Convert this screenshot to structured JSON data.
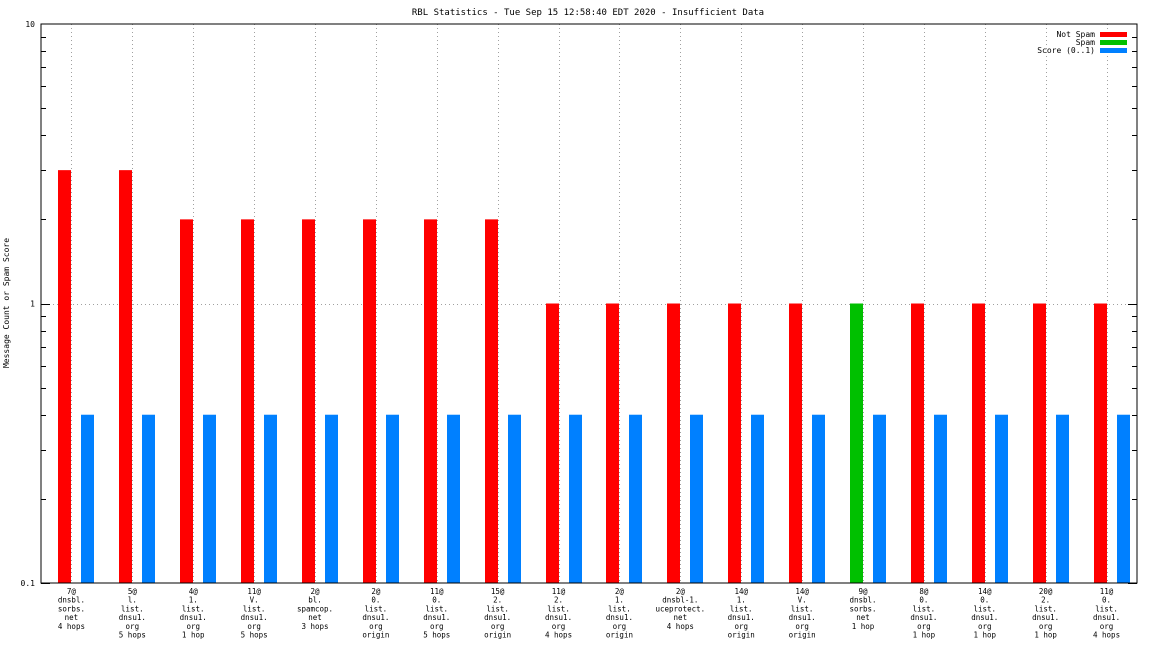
{
  "chart_data": {
    "type": "bar",
    "title": "RBL Statistics - Tue Sep 15 12:58:40 EDT 2020 - Insufficient Data",
    "ylabel": "Message Count or Spam Score",
    "xlabel": "",
    "yscale": "log",
    "ylim": [
      0.1,
      10
    ],
    "yticks": [
      {
        "value": 0.1,
        "label": "0.1"
      },
      {
        "value": 1,
        "label": "1"
      },
      {
        "value": 10,
        "label": "10"
      }
    ],
    "grid": true,
    "legend_position": "top-right",
    "categories": [
      [
        "7@",
        "dnsbl.",
        "sorbs.",
        "net",
        "4 hops"
      ],
      [
        "5@",
        "l.",
        "list.",
        "dnsu1.",
        "org",
        "5 hops"
      ],
      [
        "4@",
        "1.",
        "list.",
        "dnsu1.",
        "org",
        "1 hop"
      ],
      [
        "11@",
        "V.",
        "list.",
        "dnsu1.",
        "org",
        "5 hops"
      ],
      [
        "2@",
        "bl.",
        "spamcop.",
        "net",
        "3 hops"
      ],
      [
        "2@",
        "0.",
        "list.",
        "dnsu1.",
        "org",
        "origin"
      ],
      [
        "11@",
        "0.",
        "list.",
        "dnsu1.",
        "org",
        "5 hops"
      ],
      [
        "15@",
        "2.",
        "list.",
        "dnsu1.",
        "org",
        "origin"
      ],
      [
        "11@",
        "2.",
        "list.",
        "dnsu1.",
        "org",
        "4 hops"
      ],
      [
        "2@",
        "1.",
        "list.",
        "dnsu1.",
        "org",
        "origin"
      ],
      [
        "2@",
        "dnsbl-1.",
        "uceprotect.",
        "net",
        "4 hops"
      ],
      [
        "14@",
        "1.",
        "list.",
        "dnsu1.",
        "org",
        "origin"
      ],
      [
        "14@",
        "V.",
        "list.",
        "dnsu1.",
        "org",
        "origin"
      ],
      [
        "9@",
        "dnsbl.",
        "sorbs.",
        "net",
        "1 hop"
      ],
      [
        "8@",
        "0.",
        "list.",
        "dnsu1.",
        "org",
        "1 hop"
      ],
      [
        "14@",
        "0.",
        "list.",
        "dnsu1.",
        "org",
        "1 hop"
      ],
      [
        "20@",
        "2.",
        "list.",
        "dnsu1.",
        "org",
        "1 hop"
      ],
      [
        "11@",
        "0.",
        "list.",
        "dnsu1.",
        "org",
        "4 hops"
      ]
    ],
    "series": [
      {
        "name": "Not Spam",
        "color": "#ff0000",
        "values": [
          3,
          3,
          2,
          2,
          2,
          2,
          2,
          2,
          1,
          1,
          1,
          1,
          1,
          0,
          1,
          1,
          1,
          1
        ]
      },
      {
        "name": "Spam",
        "color": "#00c000",
        "values": [
          0,
          0,
          0,
          0,
          0,
          0,
          0,
          0,
          0,
          0,
          0,
          0,
          0,
          1,
          0,
          0,
          0,
          0
        ]
      },
      {
        "name": "Score (0..1)",
        "color": "#0080ff",
        "values": [
          0.4,
          0.4,
          0.4,
          0.4,
          0.4,
          0.4,
          0.4,
          0.4,
          0.4,
          0.4,
          0.4,
          0.4,
          0.4,
          0.4,
          0.4,
          0.4,
          0.4,
          0.4
        ]
      }
    ]
  }
}
